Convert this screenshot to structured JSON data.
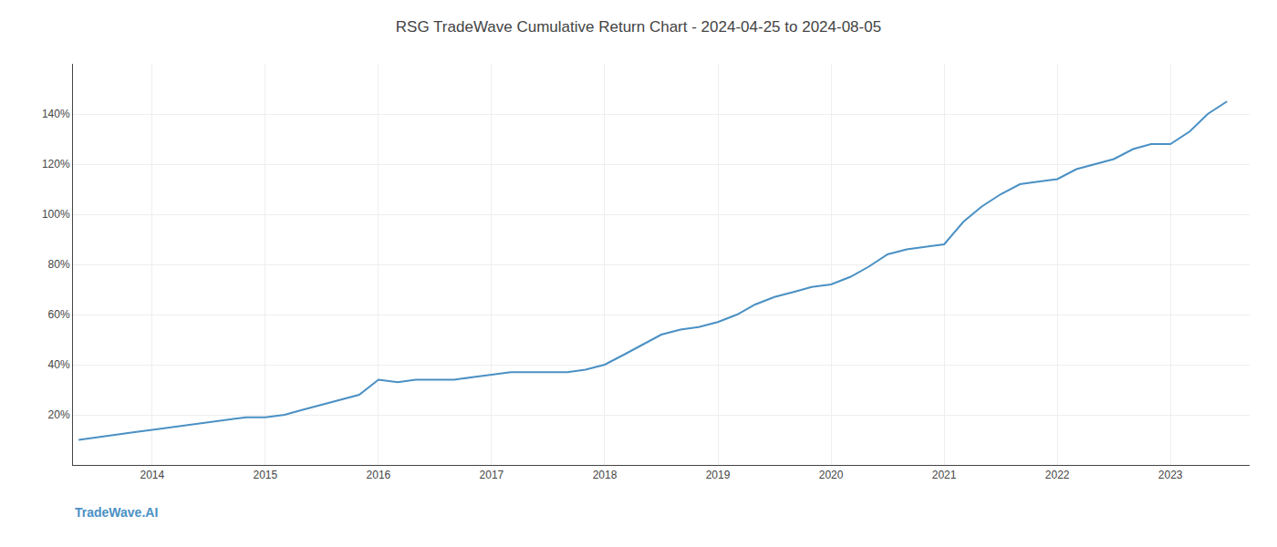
{
  "chart_data": {
    "type": "line",
    "title": "RSG TradeWave Cumulative Return Chart - 2024-04-25 to 2024-08-05",
    "annotations": [
      "TradeWave.AI"
    ],
    "color": "#4a90c4",
    "x": [
      2013.35,
      2013.5,
      2013.67,
      2013.83,
      2014.0,
      2014.17,
      2014.33,
      2014.5,
      2014.67,
      2014.83,
      2015.0,
      2015.17,
      2015.33,
      2015.5,
      2015.67,
      2015.83,
      2016.0,
      2016.17,
      2016.33,
      2016.5,
      2016.67,
      2016.83,
      2017.0,
      2017.17,
      2017.33,
      2017.5,
      2017.67,
      2017.83,
      2018.0,
      2018.17,
      2018.33,
      2018.5,
      2018.67,
      2018.83,
      2019.0,
      2019.17,
      2019.33,
      2019.5,
      2019.67,
      2019.83,
      2020.0,
      2020.17,
      2020.33,
      2020.5,
      2020.67,
      2020.83,
      2021.0,
      2021.17,
      2021.33,
      2021.5,
      2021.67,
      2021.83,
      2022.0,
      2022.17,
      2022.33,
      2022.5,
      2022.67,
      2022.83,
      2023.0,
      2023.17,
      2023.33,
      2023.5
    ],
    "values": [
      10,
      11,
      12,
      13,
      14,
      15,
      16,
      17,
      18,
      19,
      19,
      20,
      22,
      24,
      26,
      28,
      34,
      33,
      34,
      34,
      34,
      35,
      36,
      37,
      37,
      37,
      37,
      38,
      40,
      44,
      48,
      52,
      54,
      55,
      57,
      60,
      64,
      67,
      69,
      71,
      72,
      75,
      79,
      84,
      86,
      87,
      88,
      97,
      103,
      108,
      112,
      113,
      114,
      118,
      120,
      122,
      126,
      128,
      128,
      133,
      140,
      145
    ],
    "xlim": [
      2013.3,
      2023.7
    ],
    "xticks": [
      2014,
      2015,
      2016,
      2017,
      2018,
      2019,
      2020,
      2021,
      2022,
      2023
    ],
    "ylim": [
      0,
      160
    ],
    "yticks": [
      {
        "value": 20,
        "label": "20%"
      },
      {
        "value": 40,
        "label": "40%"
      },
      {
        "value": 60,
        "label": "60%"
      },
      {
        "value": 80,
        "label": "80%"
      },
      {
        "value": 100,
        "label": "100%"
      },
      {
        "value": 120,
        "label": "120%"
      },
      {
        "value": 140,
        "label": "140%"
      }
    ],
    "grid": true
  }
}
